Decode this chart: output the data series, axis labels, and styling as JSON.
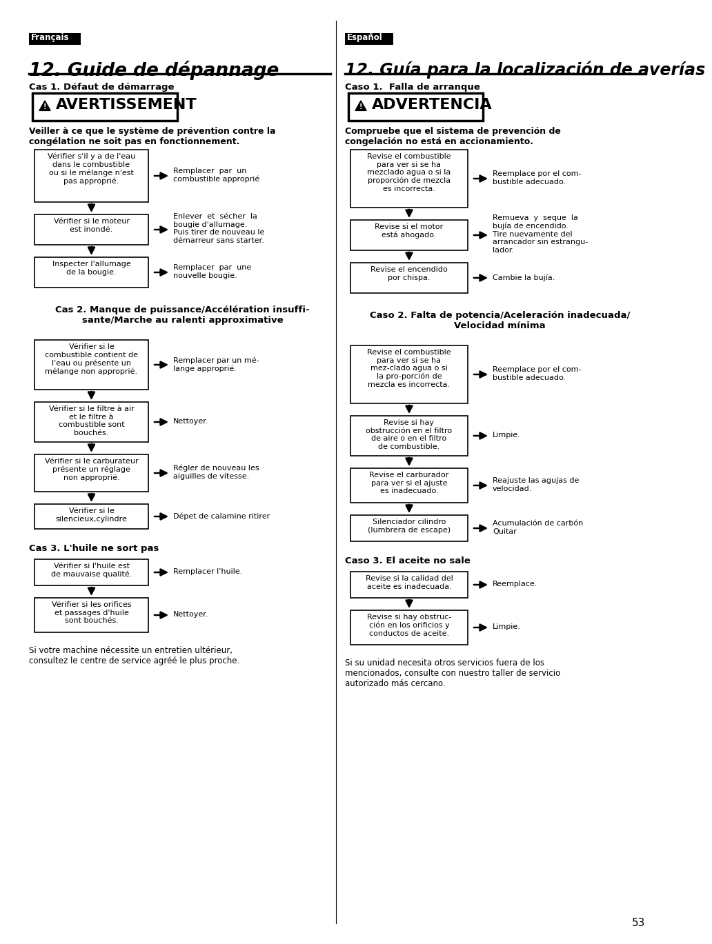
{
  "page_bg": "#ffffff",
  "left_lang": "Français",
  "right_lang": "Español",
  "left_title": "12. Guide de dépannage",
  "right_title": "12. Guía para la localización de averías",
  "left_case1": "Cas 1. Défaut de démarrage",
  "right_case1": "Caso 1.  Falla de arranque",
  "left_warn": "AVERTISSEMENT",
  "right_warn": "ADVERTENCIA",
  "left_warn_text": "Veiller à ce que le système de prévention contre la\ncongélation ne soit pas en fonctionnement.",
  "right_warn_text": "Compruebe que el sistema de prevención de\ncongelación no está en accionamiento.",
  "left_case2": "Cas 2. Manque de puissance/Accélération insuffi-\nsante/Marche au ralenti approximative",
  "right_case2": "Caso 2. Falta de potencia/Aceleración inadecuada/\nVelocidad mínima",
  "left_case3": "Cas 3. L'huile ne sort pas",
  "right_case3": "Caso 3. El aceite no sale",
  "left_footer": "Si votre machine nécessite un entretien ultérieur,\nconsultez le centre de service agréé le plus proche.",
  "right_footer": "Si su unidad necesita otros servicios fuera de los\nmencionados, consulte con nuestro taller de servicio\nautorizado más cercano.",
  "page_num": "53"
}
